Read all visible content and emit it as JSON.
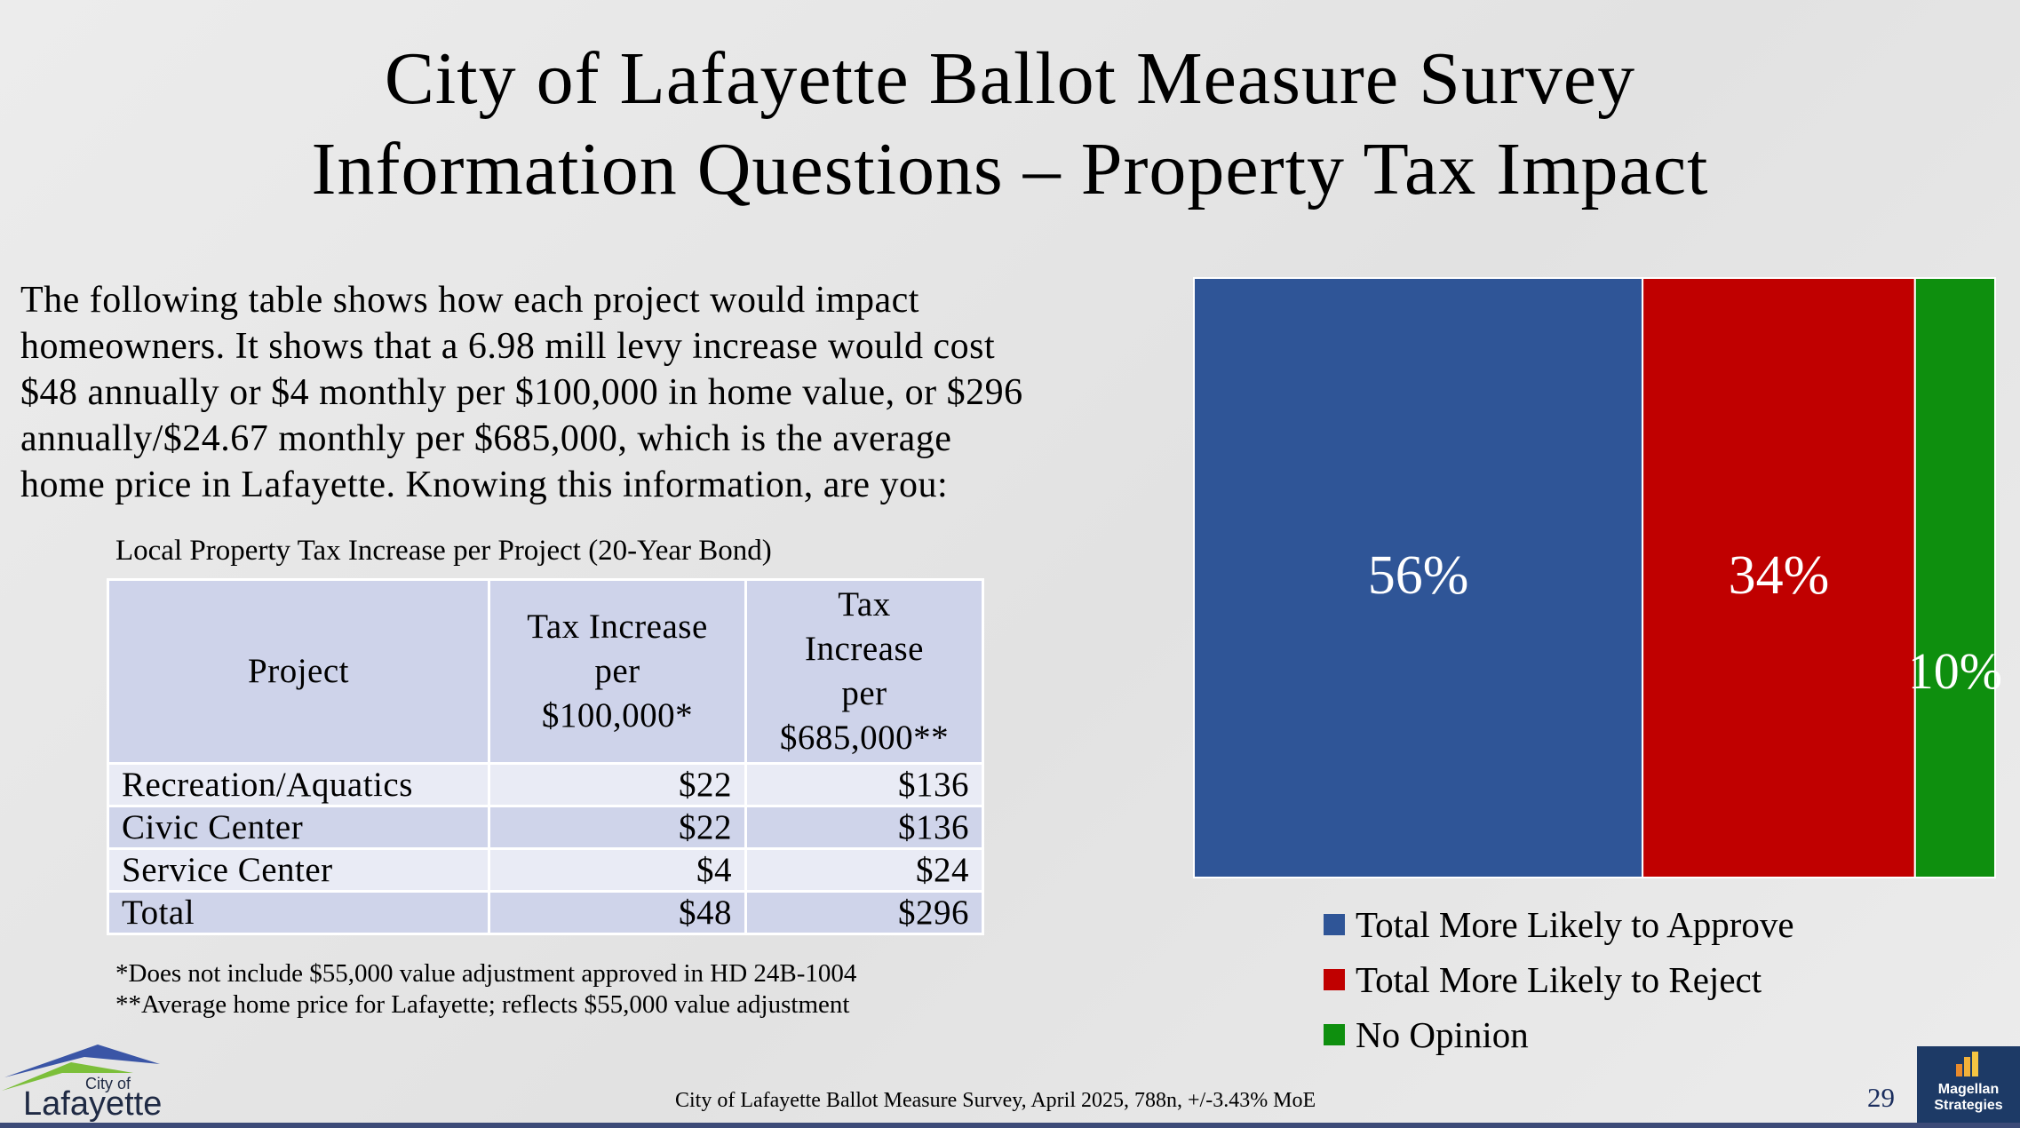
{
  "title": {
    "line1": "City of Lafayette Ballot Measure Survey",
    "line2": "Information Questions – Property Tax Impact"
  },
  "intro": {
    "line1": "The following table shows how each project would impact",
    "line2": "homeowners. It shows that a 6.98 mill levy increase would cost",
    "line3": "$48 annually or $4 monthly per $100,000 in home value, or $296",
    "line4": "annually/$24.67 monthly per $685,000, which is the average",
    "line5": "home price in Lafayette. Knowing this information, are you:"
  },
  "table": {
    "caption": "Local Property Tax Increase per Project (20-Year Bond)",
    "headers": {
      "project": "Project",
      "per100k": [
        "Tax Increase",
        "per",
        "$100,000*"
      ],
      "per685k": [
        "Tax",
        "Increase",
        "per",
        "$685,000**"
      ]
    },
    "rows": [
      {
        "project": "Recreation/Aquatics",
        "per100k": "$22",
        "per685k": "$136"
      },
      {
        "project": "Civic Center",
        "per100k": "$22",
        "per685k": "$136"
      },
      {
        "project": "Service Center",
        "per100k": "$4",
        "per685k": "$24"
      },
      {
        "project": "Total",
        "per100k": "$48",
        "per685k": "$296"
      }
    ],
    "footnote1": "*Does not include $55,000 value adjustment approved in HD 24B-1004",
    "footnote2": "**Average home price for Lafayette; reflects $55,000 value adjustment"
  },
  "chart_data": {
    "type": "bar",
    "orientation": "stacked-100-percent",
    "title": "",
    "categories": [
      ""
    ],
    "series": [
      {
        "name": "Total More Likely to Approve",
        "values": [
          56
        ],
        "label": "56%",
        "color": "#2f5597"
      },
      {
        "name": "Total More Likely to Reject",
        "values": [
          34
        ],
        "label": "34%",
        "color": "#c00000"
      },
      {
        "name": "No Opinion",
        "values": [
          10
        ],
        "label": "10%",
        "color": "#0e8f0e"
      }
    ],
    "ylim": [
      0,
      100
    ],
    "grid": false,
    "legend_position": "bottom"
  },
  "footer": {
    "source": "City of Lafayette Ballot Measure Survey, April 2025, 788n, +/-3.43% MoE",
    "page_number": "29",
    "city_logo": {
      "line1": "City of",
      "line2": "Lafayette"
    },
    "magellan_logo": {
      "line1": "Magellan",
      "line2": "Strategies"
    }
  }
}
